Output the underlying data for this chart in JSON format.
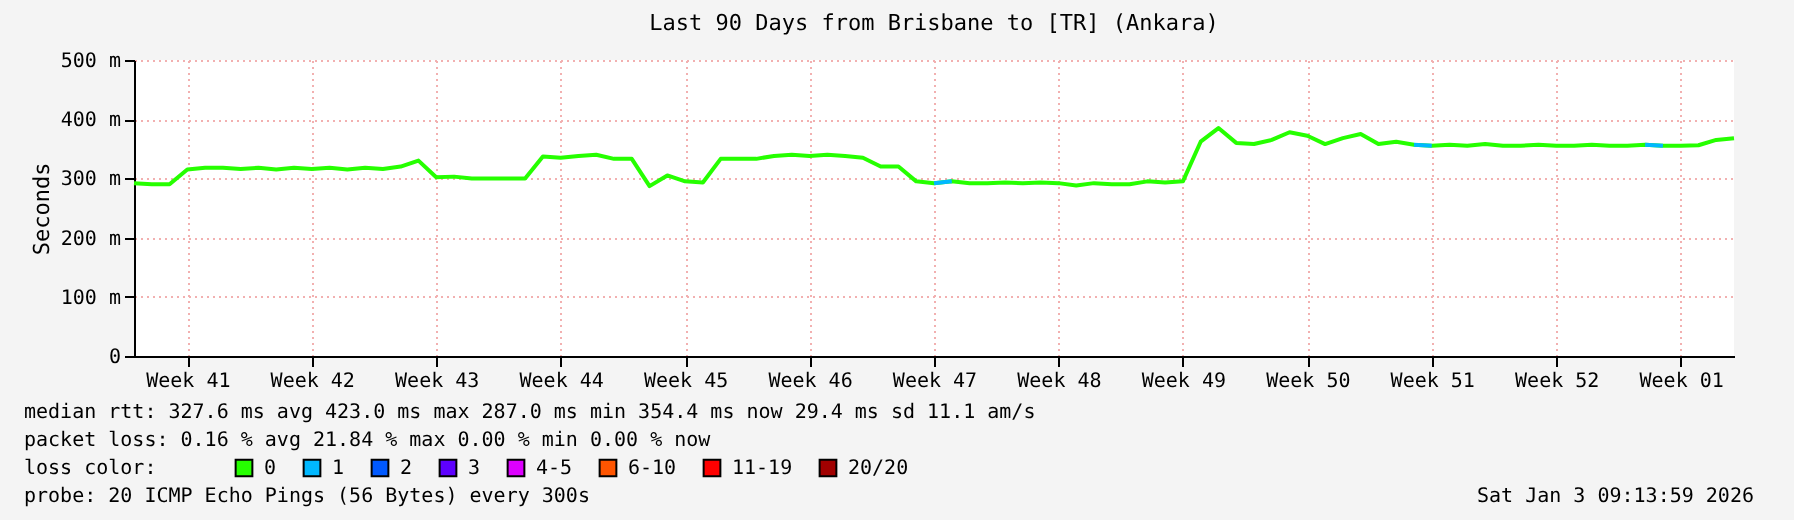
{
  "chart_data": {
    "type": "line",
    "title": "Last 90 Days from Brisbane to [TR] (Ankara)",
    "ylabel": "Seconds",
    "categories": [
      null,
      null,
      null,
      "Week 41",
      null,
      null,
      null,
      null,
      null,
      null,
      "Week 42",
      null,
      null,
      null,
      null,
      null,
      null,
      "Week 43",
      null,
      null,
      null,
      null,
      null,
      null,
      "Week 44",
      null,
      null,
      null,
      null,
      null,
      null,
      "Week 45",
      null,
      null,
      null,
      null,
      null,
      null,
      "Week 46",
      null,
      null,
      null,
      null,
      null,
      null,
      "Week 47",
      null,
      null,
      null,
      null,
      null,
      null,
      "Week 48",
      null,
      null,
      null,
      null,
      null,
      null,
      "Week 49",
      null,
      null,
      null,
      null,
      null,
      null,
      "Week 50",
      null,
      null,
      null,
      null,
      null,
      null,
      "Week 51",
      null,
      null,
      null,
      null,
      null,
      null,
      "Week 52",
      null,
      null,
      null,
      null,
      null,
      null,
      "Week 01",
      null,
      null,
      null
    ],
    "series": [
      {
        "name": "0",
        "color": "#26ff00",
        "values": [
          292,
          290,
          290,
          315,
          318,
          318,
          316,
          318,
          315,
          318,
          316,
          318,
          315,
          318,
          316,
          320,
          330,
          302,
          303,
          300,
          300,
          300,
          300,
          337,
          335,
          338,
          340,
          333,
          333,
          287,
          305,
          295,
          293,
          333,
          333,
          333,
          338,
          340,
          338,
          340,
          338,
          335,
          320,
          320,
          295,
          292,
          295,
          292,
          292,
          293,
          292,
          293,
          292,
          288,
          292,
          290,
          290,
          295,
          293,
          295,
          362,
          385,
          360,
          358,
          365,
          378,
          372,
          358,
          368,
          375,
          358,
          362,
          357,
          355,
          357,
          355,
          358,
          355,
          355,
          357,
          355,
          355,
          357,
          355,
          355,
          357,
          355,
          355,
          356,
          365,
          368
        ]
      },
      {
        "name": "1",
        "color": "#00b8ff",
        "values": [
          null,
          null,
          null,
          null,
          null,
          null,
          null,
          null,
          null,
          null,
          null,
          null,
          null,
          null,
          null,
          null,
          null,
          null,
          null,
          null,
          null,
          null,
          null,
          null,
          null,
          null,
          null,
          null,
          null,
          null,
          null,
          null,
          null,
          null,
          null,
          null,
          null,
          null,
          null,
          null,
          null,
          null,
          null,
          null,
          null,
          292,
          295,
          null,
          null,
          null,
          null,
          null,
          null,
          null,
          null,
          null,
          null,
          null,
          null,
          null,
          null,
          null,
          null,
          null,
          null,
          null,
          null,
          null,
          null,
          null,
          null,
          null,
          357,
          355,
          null,
          null,
          null,
          null,
          null,
          null,
          null,
          null,
          null,
          null,
          null,
          357,
          355,
          null,
          null,
          null,
          null
        ]
      },
      {
        "name": "2",
        "color": "#0059ff",
        "values": [
          null,
          null,
          null,
          null,
          null,
          null,
          null,
          null,
          null,
          null,
          null,
          null,
          null,
          null,
          null,
          null,
          null,
          null,
          null,
          null,
          null,
          null,
          null,
          null,
          null,
          null,
          null,
          null,
          null,
          null,
          null,
          null,
          null,
          null,
          null,
          null,
          null,
          null,
          null,
          null,
          null,
          null,
          null,
          null,
          null,
          null,
          null,
          null,
          null,
          null,
          null,
          null,
          null,
          null,
          null,
          null,
          null,
          null,
          null,
          null,
          null,
          null,
          null,
          null,
          null,
          null,
          null,
          null,
          null,
          null,
          null,
          null,
          null,
          null,
          null,
          null,
          null,
          null,
          null,
          null,
          null,
          null,
          null,
          null,
          null,
          null,
          null,
          null,
          null,
          null,
          null
        ]
      },
      {
        "name": "3",
        "color": "#5e00ff",
        "values": [
          null,
          null,
          null,
          null,
          null,
          null,
          null,
          null,
          null,
          null,
          null,
          null,
          null,
          null,
          null,
          null,
          null,
          null,
          null,
          null,
          null,
          null,
          null,
          null,
          null,
          null,
          null,
          null,
          null,
          null,
          null,
          null,
          null,
          null,
          null,
          null,
          null,
          null,
          null,
          null,
          null,
          null,
          null,
          null,
          null,
          null,
          null,
          null,
          null,
          null,
          null,
          null,
          null,
          null,
          null,
          null,
          null,
          null,
          null,
          null,
          null,
          null,
          null,
          null,
          null,
          null,
          null,
          null,
          null,
          null,
          null,
          null,
          null,
          null,
          null,
          null,
          null,
          null,
          null,
          null,
          null,
          null,
          null,
          null,
          null,
          null,
          null,
          null,
          null,
          null,
          null
        ]
      },
      {
        "name": "4-5",
        "color": "#dd00ff",
        "values": [
          null,
          null,
          null,
          null,
          null,
          null,
          null,
          null,
          null,
          null,
          null,
          null,
          null,
          null,
          null,
          null,
          null,
          null,
          null,
          null,
          null,
          null,
          null,
          null,
          null,
          null,
          null,
          null,
          null,
          null,
          null,
          null,
          null,
          null,
          null,
          null,
          null,
          null,
          null,
          null,
          null,
          null,
          null,
          null,
          null,
          null,
          null,
          null,
          null,
          null,
          null,
          null,
          null,
          null,
          null,
          null,
          null,
          null,
          null,
          null,
          null,
          null,
          null,
          null,
          null,
          null,
          null,
          null,
          null,
          null,
          null,
          null,
          null,
          null,
          null,
          null,
          null,
          null,
          null,
          null,
          null,
          null,
          null,
          null,
          null,
          null,
          null,
          null,
          null,
          null,
          null
        ]
      },
      {
        "name": "6-10",
        "color": "#ff5500",
        "values": [
          null,
          null,
          null,
          null,
          null,
          null,
          null,
          null,
          null,
          null,
          null,
          null,
          null,
          null,
          null,
          null,
          null,
          null,
          null,
          null,
          null,
          null,
          null,
          null,
          null,
          null,
          null,
          null,
          null,
          null,
          null,
          null,
          null,
          null,
          null,
          null,
          null,
          null,
          null,
          null,
          null,
          null,
          null,
          null,
          null,
          null,
          null,
          null,
          null,
          null,
          null,
          null,
          null,
          null,
          null,
          null,
          null,
          null,
          null,
          null,
          null,
          null,
          null,
          null,
          null,
          null,
          null,
          null,
          null,
          null,
          null,
          null,
          null,
          null,
          null,
          null,
          null,
          null,
          null,
          null,
          null,
          null,
          null,
          null,
          null,
          null,
          null,
          null,
          null,
          null,
          null
        ]
      },
      {
        "name": "11-19",
        "color": "#ff0000",
        "values": [
          null,
          null,
          null,
          null,
          null,
          null,
          null,
          null,
          null,
          null,
          null,
          null,
          null,
          null,
          null,
          null,
          null,
          null,
          null,
          null,
          null,
          null,
          null,
          null,
          null,
          null,
          null,
          null,
          null,
          null,
          null,
          null,
          null,
          null,
          null,
          null,
          null,
          null,
          null,
          null,
          null,
          null,
          null,
          null,
          null,
          null,
          null,
          null,
          null,
          null,
          null,
          null,
          null,
          null,
          null,
          null,
          null,
          null,
          null,
          null,
          null,
          null,
          null,
          null,
          null,
          null,
          null,
          null,
          null,
          null,
          null,
          null,
          null,
          null,
          null,
          null,
          null,
          null,
          null,
          null,
          null,
          null,
          null,
          null,
          null,
          null,
          null,
          null,
          null,
          null,
          null
        ]
      },
      {
        "name": "20/20",
        "color": "#a10000",
        "values": [
          null,
          null,
          null,
          null,
          null,
          null,
          null,
          null,
          null,
          null,
          null,
          null,
          null,
          null,
          null,
          null,
          null,
          null,
          null,
          null,
          null,
          null,
          null,
          null,
          null,
          null,
          null,
          null,
          null,
          null,
          null,
          null,
          null,
          null,
          null,
          null,
          null,
          null,
          null,
          null,
          null,
          null,
          null,
          null,
          null,
          null,
          null,
          null,
          null,
          null,
          null,
          null,
          null,
          null,
          null,
          null,
          null,
          null,
          null,
          null,
          null,
          null,
          null,
          null,
          null,
          null,
          null,
          null,
          null,
          null,
          null,
          null,
          null,
          null,
          null,
          null,
          null,
          null,
          null,
          null,
          null,
          null,
          null,
          null,
          null,
          null,
          null,
          null,
          null,
          null,
          null
        ]
      }
    ],
    "legend": "bottom",
    "legend_title": "loss color:",
    "ylim": [
      0,
      500
    ],
    "yticks": [
      0,
      {
        "value": 100,
        "label": "100 m"
      },
      {
        "value": 200,
        "label": "200 m"
      },
      {
        "value": 300,
        "label": "300 m"
      },
      {
        "value": 400,
        "label": "400 m"
      },
      {
        "value": 500,
        "label": "500 m"
      }
    ],
    "grid": true,
    "marker": "none",
    "line_style": "solid",
    "annotations": [
      "median rtt:  327.6 ms avg  423.0 ms max  287.0 ms min  354.4 ms now  29.4 ms sd  11.1   am/s",
      "packet loss: 0.16 % avg  21.84 % max  0.00 % min  0.00 % now",
      "probe:        20 ICMP Echo Pings (56 Bytes) every 300s",
      "Sat Jan  3 09:13:59 2026"
    ]
  }
}
